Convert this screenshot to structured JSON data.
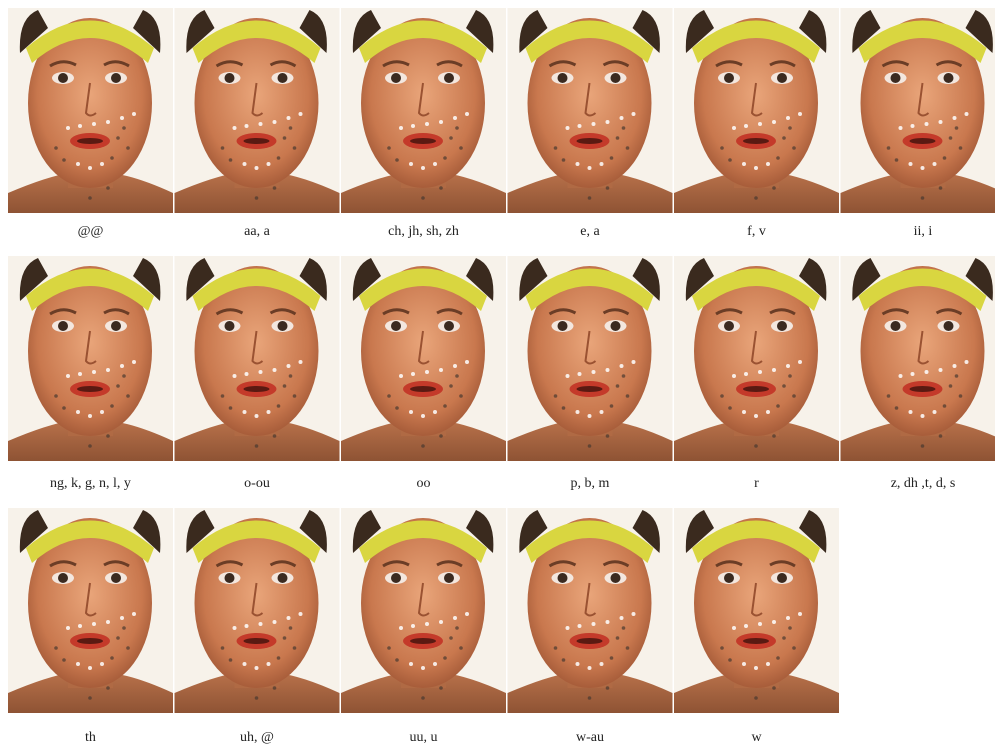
{
  "figure": {
    "labels": [
      "@@",
      "aa, a",
      "ch, jh, sh, zh",
      "e, a",
      "f, v",
      "ii, i",
      "ng, k, g, n, l, y",
      "o-ou",
      "oo",
      "p, b, m",
      "r",
      "z, dh ,t, d, s",
      "th",
      "uh, @",
      "uu, u",
      "w-au",
      "w"
    ]
  }
}
